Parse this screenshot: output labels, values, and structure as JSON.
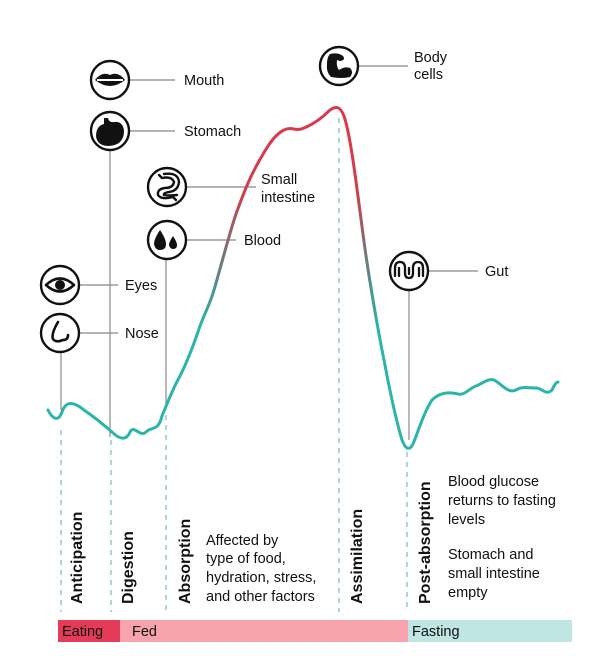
{
  "colors": {
    "curve_start": "#2bb5a8",
    "curve_peak": "#d93a4a",
    "dash": "#7cc3c4",
    "eating": "#e43c58",
    "fed": "#f6a3ad",
    "fasting": "#bfe6e2"
  },
  "organs": [
    {
      "name": "eyes-icon",
      "label": "Eyes"
    },
    {
      "name": "nose-icon",
      "label": "Nose"
    },
    {
      "name": "mouth-icon",
      "label": "Mouth"
    },
    {
      "name": "stomach-icon",
      "label": "Stomach"
    },
    {
      "name": "small-intestine-icon",
      "label_lines": [
        "Small",
        "intestine"
      ]
    },
    {
      "name": "blood-icon",
      "label": "Blood"
    },
    {
      "name": "body-cells-icon",
      "label_lines": [
        "Body",
        "cells"
      ]
    },
    {
      "name": "gut-icon",
      "label": "Gut"
    }
  ],
  "phases": [
    "Anticipation",
    "Digestion",
    "Absorption",
    "Assimilation",
    "Post-absorption"
  ],
  "notes": {
    "absorption": [
      "Affected by",
      "type of food,",
      "hydration, stress,",
      "and other factors"
    ],
    "post_absorption_1": [
      "Blood glucose",
      "returns to fasting",
      "levels"
    ],
    "post_absorption_2": [
      "Stomach and",
      "small intestine",
      "empty"
    ]
  },
  "bands": [
    {
      "label": "Eating"
    },
    {
      "label": "Fed"
    },
    {
      "label": "Fasting"
    }
  ]
}
